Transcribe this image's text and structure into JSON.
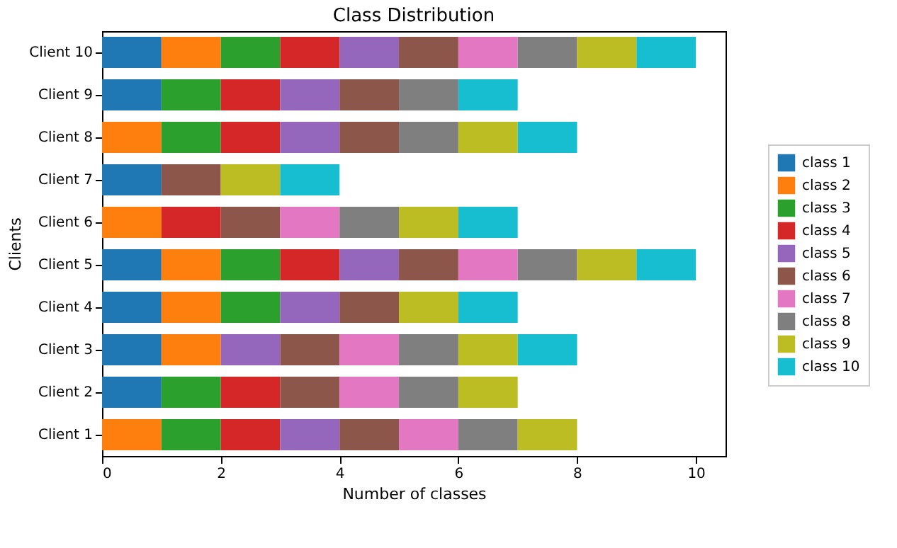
{
  "chart_data": {
    "type": "bar",
    "orientation": "horizontal",
    "stacked": true,
    "title": "Class Distribution",
    "xlabel": "Number of classes",
    "ylabel": "Clients",
    "categories": [
      "Client 10",
      "Client 9",
      "Client 8",
      "Client 7",
      "Client 6",
      "Client 5",
      "Client 4",
      "Client 3",
      "Client 2",
      "Client 1"
    ],
    "series": [
      {
        "name": "class 1",
        "color": "#1f77b4",
        "values": [
          1,
          1,
          null,
          1,
          null,
          1,
          1,
          1,
          1,
          null
        ]
      },
      {
        "name": "class 2",
        "color": "#ff7f0e",
        "values": [
          1,
          null,
          1,
          null,
          1,
          1,
          1,
          1,
          null,
          1
        ]
      },
      {
        "name": "class 3",
        "color": "#2ca02c",
        "values": [
          1,
          1,
          1,
          null,
          null,
          1,
          1,
          null,
          1,
          1
        ]
      },
      {
        "name": "class 4",
        "color": "#d62728",
        "values": [
          1,
          1,
          1,
          null,
          1,
          1,
          null,
          null,
          1,
          1
        ]
      },
      {
        "name": "class 5",
        "color": "#9467bd",
        "values": [
          1,
          1,
          1,
          null,
          null,
          1,
          1,
          1,
          null,
          1
        ]
      },
      {
        "name": "class 6",
        "color": "#8c564b",
        "values": [
          1,
          1,
          1,
          1,
          1,
          1,
          1,
          1,
          1,
          1
        ]
      },
      {
        "name": "class 7",
        "color": "#e377c2",
        "values": [
          1,
          null,
          null,
          null,
          1,
          1,
          null,
          1,
          1,
          1
        ]
      },
      {
        "name": "class 8",
        "color": "#7f7f7f",
        "values": [
          1,
          1,
          1,
          null,
          1,
          1,
          null,
          1,
          1,
          1
        ]
      },
      {
        "name": "class 9",
        "color": "#bcbd22",
        "values": [
          1,
          null,
          1,
          1,
          1,
          1,
          1,
          1,
          1,
          1
        ]
      },
      {
        "name": "class 10",
        "color": "#17becf",
        "values": [
          1,
          1,
          1,
          1,
          1,
          1,
          1,
          1,
          null,
          null
        ]
      }
    ],
    "xlim": [
      0,
      10.5
    ],
    "xticks": [
      0,
      2,
      4,
      6,
      8,
      10
    ],
    "grid": false,
    "legend": "right"
  }
}
